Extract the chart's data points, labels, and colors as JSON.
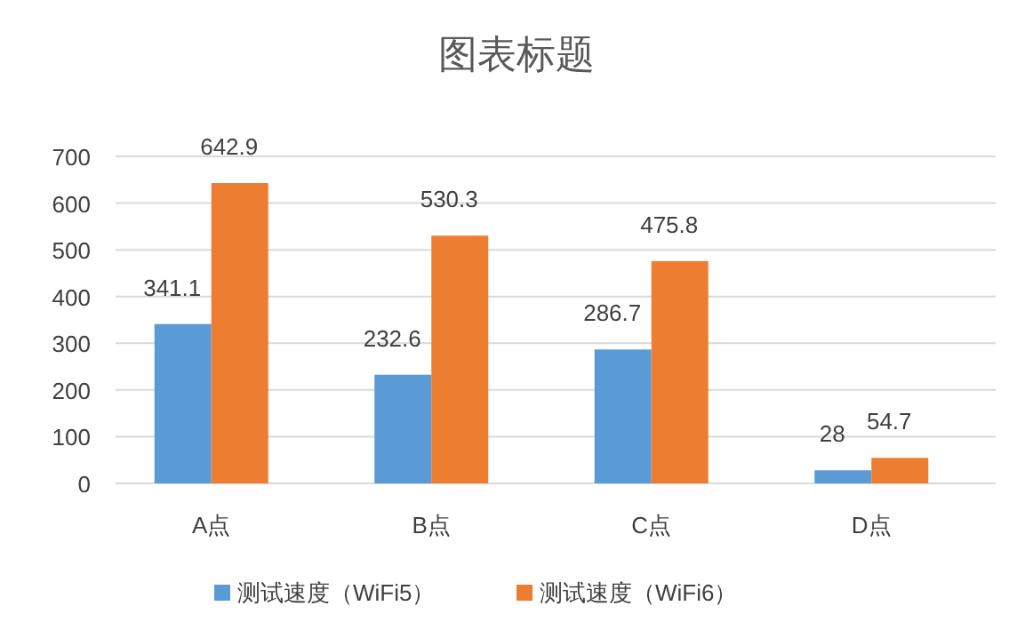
{
  "chart_data": {
    "type": "bar",
    "title": "图表标题",
    "categories": [
      "A点",
      "B点",
      "C点",
      "D点"
    ],
    "series": [
      {
        "name": "测试速度（WiFi5）",
        "color": "#5b9bd5",
        "values": [
          341.1,
          232.6,
          286.7,
          28
        ]
      },
      {
        "name": "测试速度（WiFi6）",
        "color": "#ed7d31",
        "values": [
          642.9,
          530.3,
          475.8,
          54.7
        ]
      }
    ],
    "ylim": [
      0,
      700
    ],
    "yticks": [
      0,
      100,
      200,
      300,
      400,
      500,
      600,
      700
    ],
    "grid": "y",
    "data_labels": true,
    "legend": "bottom"
  }
}
